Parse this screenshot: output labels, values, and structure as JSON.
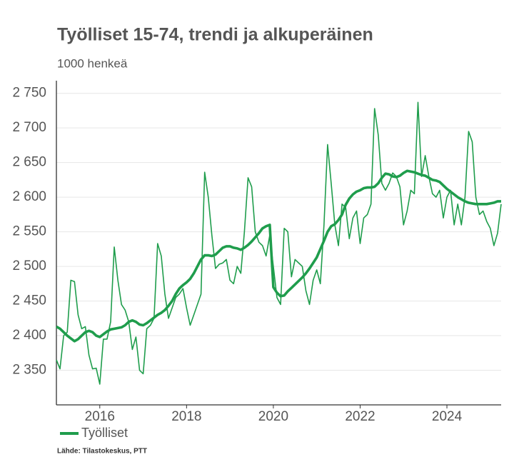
{
  "chart_data": {
    "type": "line",
    "title": "Työlliset 15-74, trendi ja alkuperäinen",
    "subtitle": "1000 henkeä",
    "source": "Lähde: Tilastokeskus, PTT",
    "x": [
      2015,
      2015.083,
      2015.167,
      2015.25,
      2015.333,
      2015.417,
      2015.5,
      2015.583,
      2015.667,
      2015.75,
      2015.833,
      2015.917,
      2016,
      2016.083,
      2016.167,
      2016.25,
      2016.333,
      2016.417,
      2016.5,
      2016.583,
      2016.667,
      2016.75,
      2016.833,
      2016.917,
      2017,
      2017.083,
      2017.167,
      2017.25,
      2017.333,
      2017.417,
      2017.5,
      2017.583,
      2017.667,
      2017.75,
      2017.833,
      2017.917,
      2018,
      2018.083,
      2018.167,
      2018.25,
      2018.333,
      2018.417,
      2018.5,
      2018.583,
      2018.667,
      2018.75,
      2018.833,
      2018.917,
      2019,
      2019.083,
      2019.167,
      2019.25,
      2019.333,
      2019.417,
      2019.5,
      2019.583,
      2019.667,
      2019.75,
      2019.833,
      2019.917,
      2020,
      2020.083,
      2020.167,
      2020.25,
      2020.333,
      2020.417,
      2020.5,
      2020.583,
      2020.667,
      2020.75,
      2020.833,
      2020.917,
      2021,
      2021.083,
      2021.167,
      2021.25,
      2021.333,
      2021.417,
      2021.5,
      2021.583,
      2021.667,
      2021.75,
      2021.833,
      2021.917,
      2022,
      2022.083,
      2022.167,
      2022.25,
      2022.333,
      2022.417,
      2022.5,
      2022.583,
      2022.667,
      2022.75,
      2022.833,
      2022.917,
      2023,
      2023.083,
      2023.167,
      2023.25,
      2023.333,
      2023.417,
      2023.5,
      2023.583,
      2023.667,
      2023.75,
      2023.833,
      2023.917,
      2024,
      2024.083,
      2024.167,
      2024.25,
      2024.333,
      2024.417,
      2024.5,
      2024.583,
      2024.667,
      2024.75,
      2024.833,
      2024.917,
      2025,
      2025.083,
      2025.167,
      2025.25
    ],
    "series": [
      {
        "color": "#1f9d4c",
        "width": 1.6,
        "values": [
          2365,
          2352,
          2400,
          2405,
          2480,
          2478,
          2430,
          2410,
          2413,
          2372,
          2352,
          2353,
          2330,
          2395,
          2395,
          2420,
          2528,
          2480,
          2445,
          2437,
          2420,
          2380,
          2398,
          2350,
          2345,
          2410,
          2415,
          2425,
          2533,
          2515,
          2460,
          2425,
          2440,
          2455,
          2460,
          2468,
          2440,
          2415,
          2430,
          2445,
          2460,
          2636,
          2600,
          2545,
          2497,
          2503,
          2505,
          2510,
          2480,
          2475,
          2500,
          2490,
          2550,
          2628,
          2615,
          2550,
          2535,
          2530,
          2515,
          2545,
          2500,
          2455,
          2445,
          2555,
          2550,
          2485,
          2510,
          2505,
          2500,
          2465,
          2445,
          2480,
          2495,
          2475,
          2560,
          2676,
          2620,
          2560,
          2530,
          2590,
          2585,
          2540,
          2570,
          2580,
          2533,
          2570,
          2575,
          2590,
          2728,
          2690,
          2620,
          2610,
          2620,
          2635,
          2630,
          2615,
          2560,
          2580,
          2610,
          2605,
          2737,
          2630,
          2660,
          2630,
          2605,
          2600,
          2610,
          2570,
          2600,
          2610,
          2560,
          2590,
          2560,
          2600,
          2695,
          2680,
          2600,
          2575,
          2580,
          2565,
          2555,
          2530,
          2548,
          2590
        ]
      },
      {
        "name": "Työlliset",
        "color": "#1f9d4c",
        "width": 3.6,
        "values": [
          2413,
          2410,
          2405,
          2400,
          2396,
          2392,
          2395,
          2400,
          2405,
          2407,
          2405,
          2400,
          2398,
          2402,
          2406,
          2409,
          2410,
          2411,
          2412,
          2415,
          2420,
          2422,
          2420,
          2416,
          2415,
          2418,
          2422,
          2426,
          2430,
          2433,
          2437,
          2443,
          2450,
          2460,
          2468,
          2473,
          2477,
          2482,
          2490,
          2500,
          2510,
          2516,
          2516,
          2515,
          2517,
          2522,
          2527,
          2529,
          2529,
          2527,
          2526,
          2524,
          2527,
          2531,
          2536,
          2542,
          2548,
          2555,
          2558,
          2560,
          2470,
          2462,
          2457,
          2458,
          2464,
          2469,
          2474,
          2479,
          2484,
          2490,
          2497,
          2505,
          2513,
          2525,
          2537,
          2550,
          2558,
          2561,
          2567,
          2575,
          2589,
          2598,
          2604,
          2608,
          2610,
          2613,
          2614,
          2614,
          2615,
          2620,
          2628,
          2634,
          2633,
          2630,
          2629,
          2631,
          2635,
          2638,
          2637,
          2636,
          2634,
          2632,
          2631,
          2628,
          2625,
          2624,
          2622,
          2617,
          2612,
          2608,
          2604,
          2600,
          2597,
          2594,
          2592,
          2591,
          2590,
          2590,
          2590,
          2590,
          2591,
          2592,
          2594,
          2594
        ]
      }
    ],
    "xlim": [
      2015,
      2025.25
    ],
    "xticks": [
      2016,
      2018,
      2020,
      2022,
      2024
    ],
    "ylim": [
      2300,
      2760
    ],
    "yticks": [
      {
        "value": 2350,
        "label": "2 350"
      },
      {
        "value": 2400,
        "label": "2 400"
      },
      {
        "value": 2450,
        "label": "2 450"
      },
      {
        "value": 2500,
        "label": "2 500"
      },
      {
        "value": 2550,
        "label": "2 550"
      },
      {
        "value": 2600,
        "label": "2 600"
      },
      {
        "value": 2650,
        "label": "2 650"
      },
      {
        "value": 2700,
        "label": "2 700"
      },
      {
        "value": 2750,
        "label": "2 750"
      }
    ],
    "grid": true,
    "legend": "bottom-left"
  }
}
